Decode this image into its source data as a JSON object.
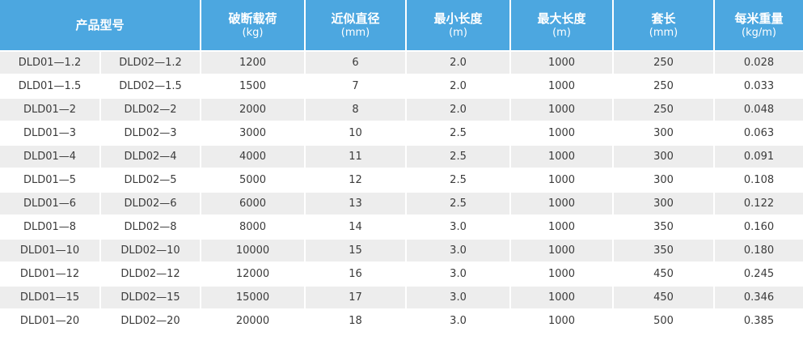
{
  "columns": [
    {
      "name": "产品型号",
      "unit": ""
    },
    {
      "name": "破断载荷",
      "unit": "(kg)"
    },
    {
      "name": "近似直径",
      "unit": "(mm)"
    },
    {
      "name": "最小长度",
      "unit": "(m)"
    },
    {
      "name": "最大长度",
      "unit": "(m)"
    },
    {
      "name": "套长",
      "unit": "(mm)"
    },
    {
      "name": "每米重量",
      "unit": "(kg/m)"
    }
  ],
  "rows": [
    [
      "DLD01—1.2",
      "DLD02—1.2",
      "1200",
      "6",
      "2.0",
      "1000",
      "250",
      "0.028"
    ],
    [
      "DLD01—1.5",
      "DLD02—1.5",
      "1500",
      "7",
      "2.0",
      "1000",
      "250",
      "0.033"
    ],
    [
      "DLD01—2",
      "DLD02—2",
      "2000",
      "8",
      "2.0",
      "1000",
      "250",
      "0.048"
    ],
    [
      "DLD01—3",
      "DLD02—3",
      "3000",
      "10",
      "2.5",
      "1000",
      "300",
      "0.063"
    ],
    [
      "DLD01—4",
      "DLD02—4",
      "4000",
      "11",
      "2.5",
      "1000",
      "300",
      "0.091"
    ],
    [
      "DLD01—5",
      "DLD02—5",
      "5000",
      "12",
      "2.5",
      "1000",
      "300",
      "0.108"
    ],
    [
      "DLD01—6",
      "DLD02—6",
      "6000",
      "13",
      "2.5",
      "1000",
      "300",
      "0.122"
    ],
    [
      "DLD01—8",
      "DLD02—8",
      "8000",
      "14",
      "3.0",
      "1000",
      "350",
      "0.160"
    ],
    [
      "DLD01—10",
      "DLD02—10",
      "10000",
      "15",
      "3.0",
      "1000",
      "350",
      "0.180"
    ],
    [
      "DLD01—12",
      "DLD02—12",
      "12000",
      "16",
      "3.0",
      "1000",
      "450",
      "0.245"
    ],
    [
      "DLD01—15",
      "DLD02—15",
      "15000",
      "17",
      "3.0",
      "1000",
      "450",
      "0.346"
    ],
    [
      "DLD01—20",
      "DLD02—20",
      "20000",
      "18",
      "3.0",
      "1000",
      "500",
      "0.385"
    ]
  ],
  "colors": {
    "header_bg": "#4ca7e0",
    "header_text": "#ffffff",
    "row_shaded": "#ededed",
    "row_plain": "#ffffff",
    "cell_text": "#3b3b3b"
  }
}
